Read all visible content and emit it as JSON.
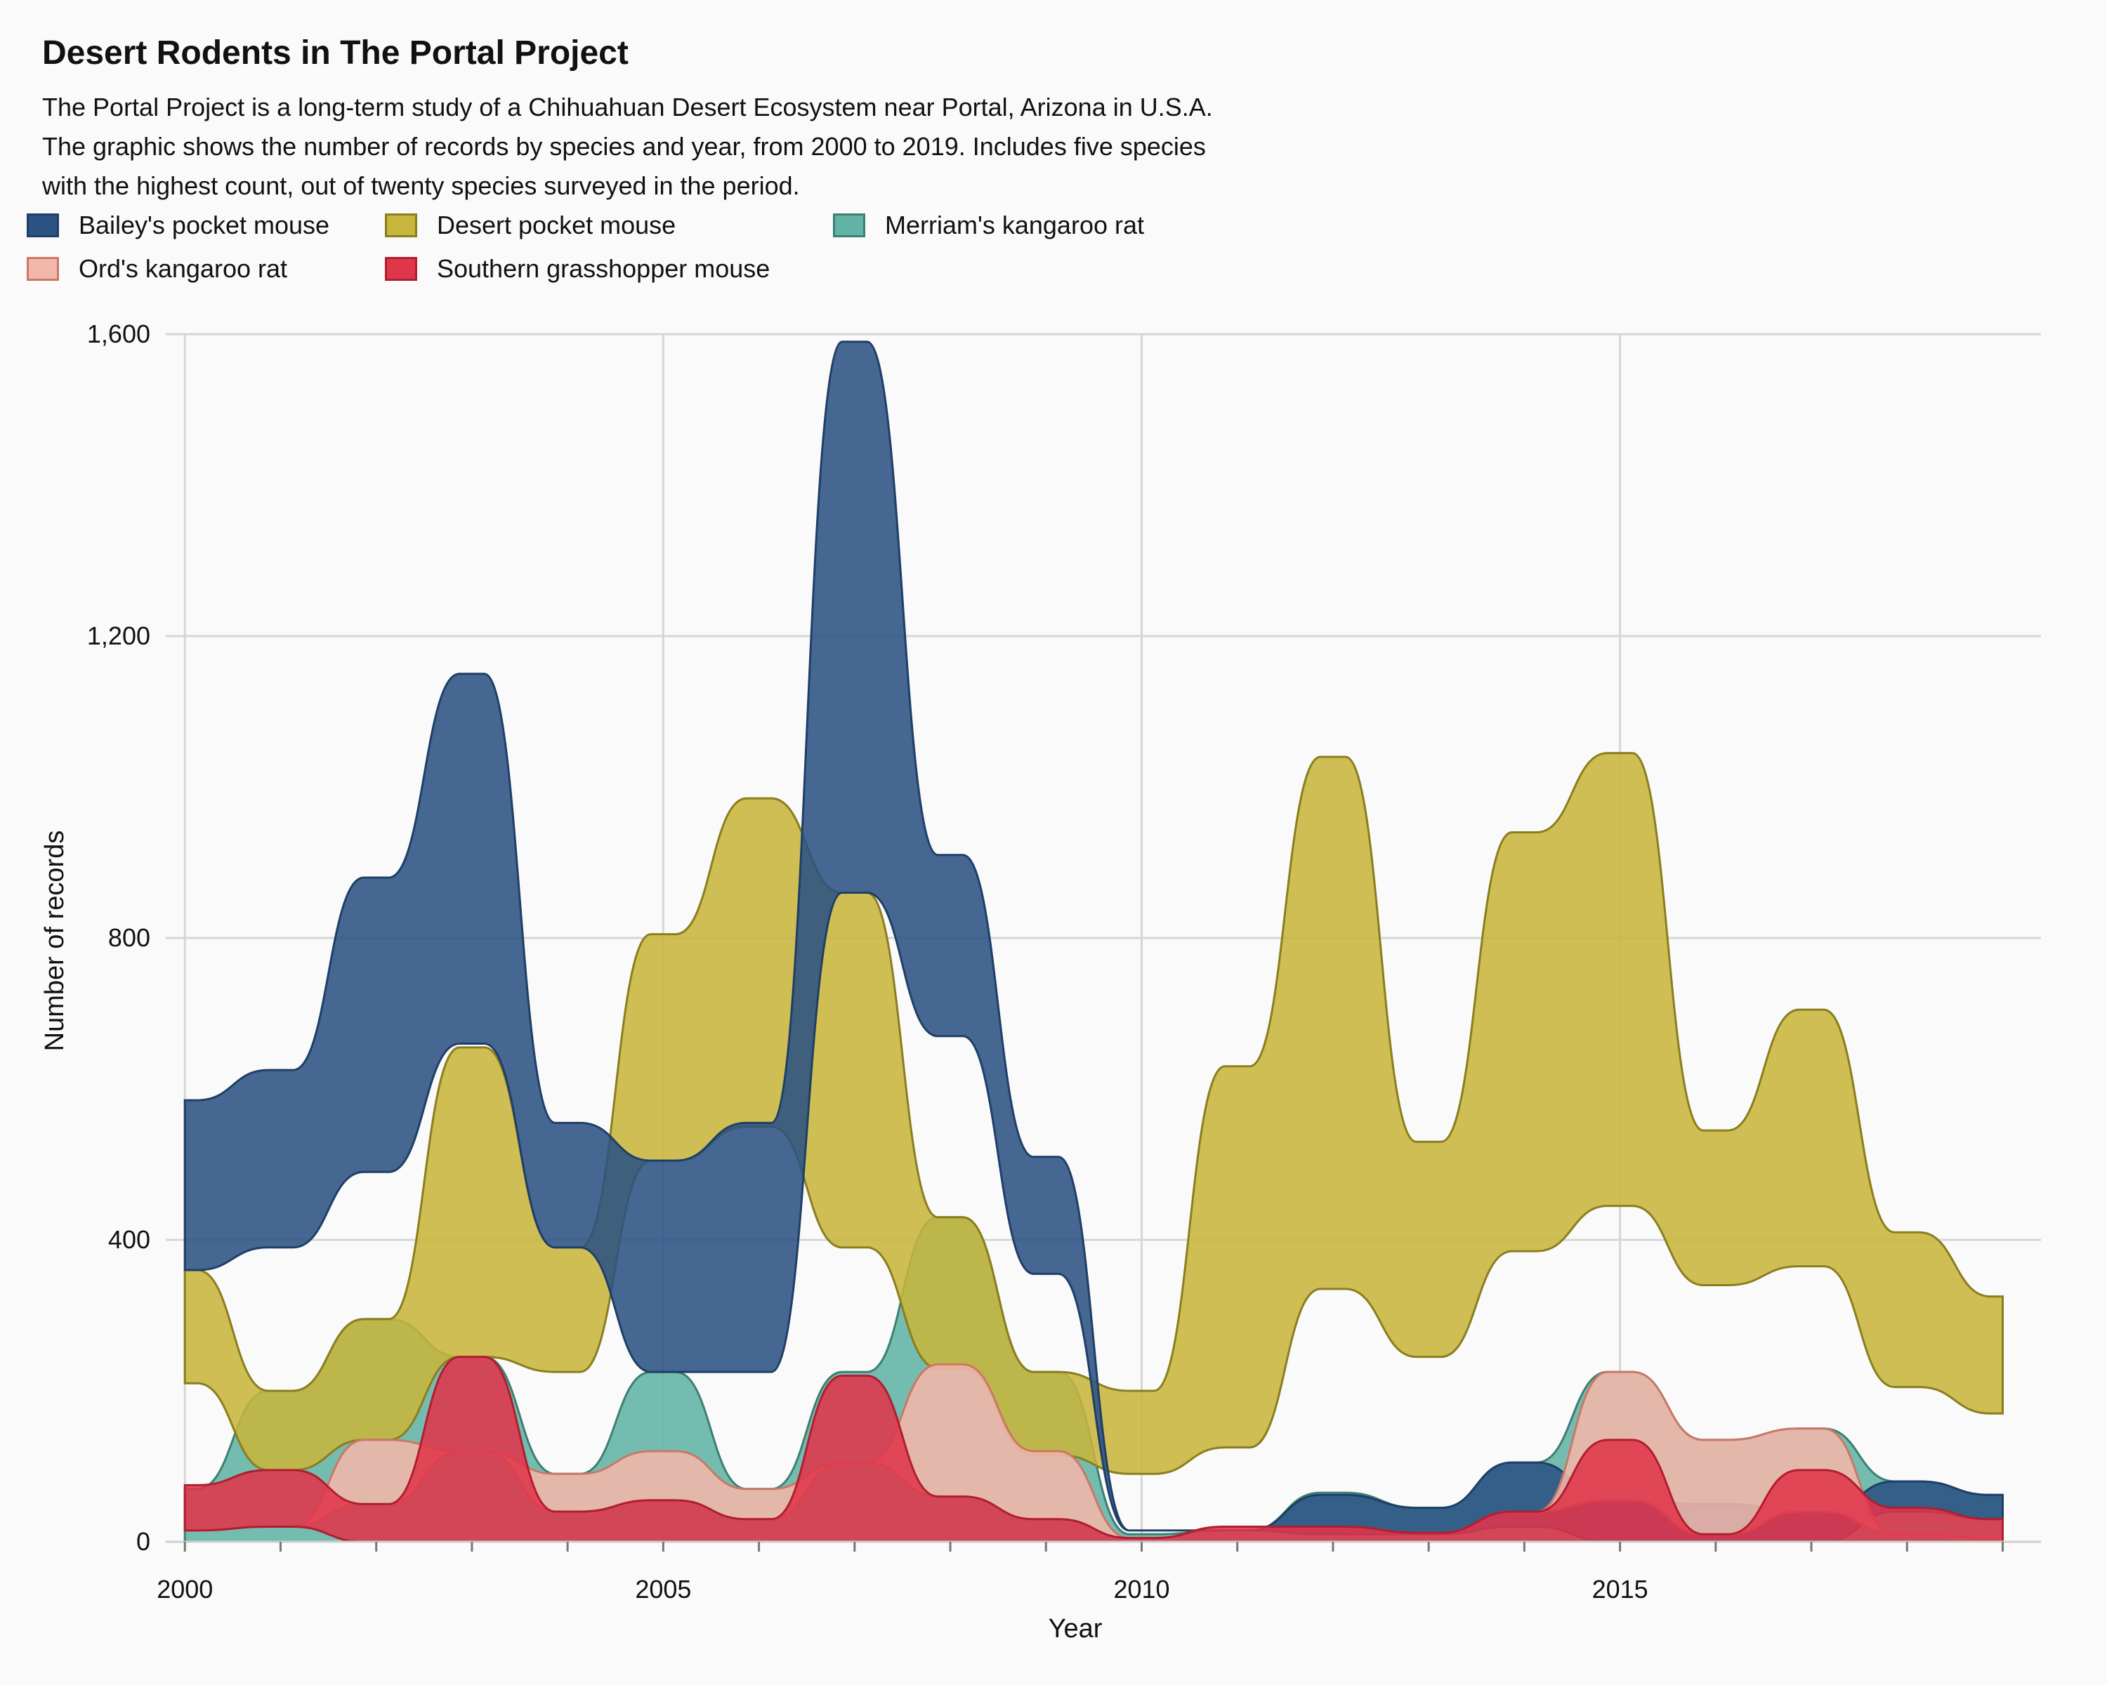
{
  "title": "Desert Rodents in The Portal Project",
  "subtitle_lines": [
    "The Portal Project is a long-term study of a Chihuahuan Desert Ecosystem near Portal, Arizona in U.S.A.",
    "The graphic shows the number of records by species and year, from 2000 to 2019. Includes five species",
    "with the highest count, out of twenty species surveyed in the period."
  ],
  "legend": [
    {
      "label": "Bailey's pocket mouse",
      "color": "#2b5283",
      "stroke": "#1f3f66"
    },
    {
      "label": "Desert pocket mouse",
      "color": "#c7b53c",
      "stroke": "#8a7e1e"
    },
    {
      "label": "Merriam's kangaroo rat",
      "color": "#62b3a5",
      "stroke": "#3c7f73"
    },
    {
      "label": "Ord's kangaroo rat",
      "color": "#f3b7aa",
      "stroke": "#c97866"
    },
    {
      "label": "Southern grasshopper mouse",
      "color": "#e0364a",
      "stroke": "#b01e2f"
    }
  ],
  "chart_data": {
    "type": "area",
    "title": "Desert Rodents in The Portal Project",
    "xlabel": "Year",
    "ylabel": "Number of records",
    "xlim": [
      1999.8,
      2019.4
    ],
    "ylim": [
      0,
      1600
    ],
    "xticks": [
      2000,
      2005,
      2010,
      2015
    ],
    "xtick_labels": [
      "2000",
      "2005",
      "2010",
      "2015"
    ],
    "yticks": [
      0,
      400,
      800,
      1200,
      1600
    ],
    "ytick_labels": [
      "0",
      "400",
      "800",
      "1,200",
      "1,600"
    ],
    "grid": true,
    "legend_position": "top-left",
    "x": [
      2000,
      2001,
      2002,
      2003,
      2004,
      2005,
      2006,
      2007,
      2008,
      2009,
      2010,
      2011,
      2012,
      2013,
      2014,
      2015,
      2016,
      2017,
      2018,
      2019
    ],
    "series": [
      {
        "name": "Bailey's pocket mouse",
        "lower": [
          360,
          390,
          490,
          660,
          390,
          225,
          225,
          860,
          670,
          355,
          15,
          15,
          10,
          10,
          20,
          0,
          0,
          0,
          40,
          30
        ],
        "upper": [
          585,
          625,
          880,
          1150,
          555,
          505,
          555,
          1590,
          910,
          510,
          15,
          15,
          62,
          45,
          105,
          55,
          50,
          40,
          80,
          62
        ]
      },
      {
        "name": "Desert pocket mouse",
        "lower": [
          210,
          95,
          135,
          245,
          225,
          505,
          550,
          390,
          230,
          115,
          90,
          125,
          335,
          245,
          385,
          445,
          340,
          365,
          205,
          170
        ],
        "upper": [
          360,
          200,
          295,
          655,
          390,
          805,
          985,
          860,
          430,
          225,
          200,
          630,
          1040,
          530,
          940,
          1045,
          545,
          705,
          410,
          325
        ]
      },
      {
        "name": "Merriam's kangaroo rat",
        "lower": [
          70,
          200,
          295,
          245,
          90,
          225,
          70,
          225,
          430,
          225,
          10,
          15,
          65,
          45,
          105,
          225,
          135,
          150,
          80,
          62
        ]
      },
      {
        "name": "Ord's kangaroo rat",
        "lower": [
          15,
          20,
          50,
          120,
          40,
          55,
          30,
          105,
          60,
          30,
          5,
          20,
          20,
          12,
          40,
          55,
          10,
          40,
          10,
          5
        ],
        "upper": [
          15,
          20,
          135,
          120,
          90,
          120,
          70,
          105,
          235,
          120,
          5,
          20,
          20,
          12,
          40,
          225,
          135,
          150,
          10,
          5
        ]
      },
      {
        "name": "Southern grasshopper mouse",
        "lower": [
          15,
          20,
          0,
          0,
          0,
          0,
          0,
          0,
          0,
          0,
          0,
          0,
          0,
          0,
          0,
          0,
          0,
          0,
          0,
          0
        ],
        "upper": [
          75,
          95,
          50,
          245,
          40,
          55,
          30,
          220,
          60,
          30,
          5,
          20,
          20,
          12,
          40,
          135,
          10,
          95,
          45,
          30
        ]
      }
    ]
  }
}
